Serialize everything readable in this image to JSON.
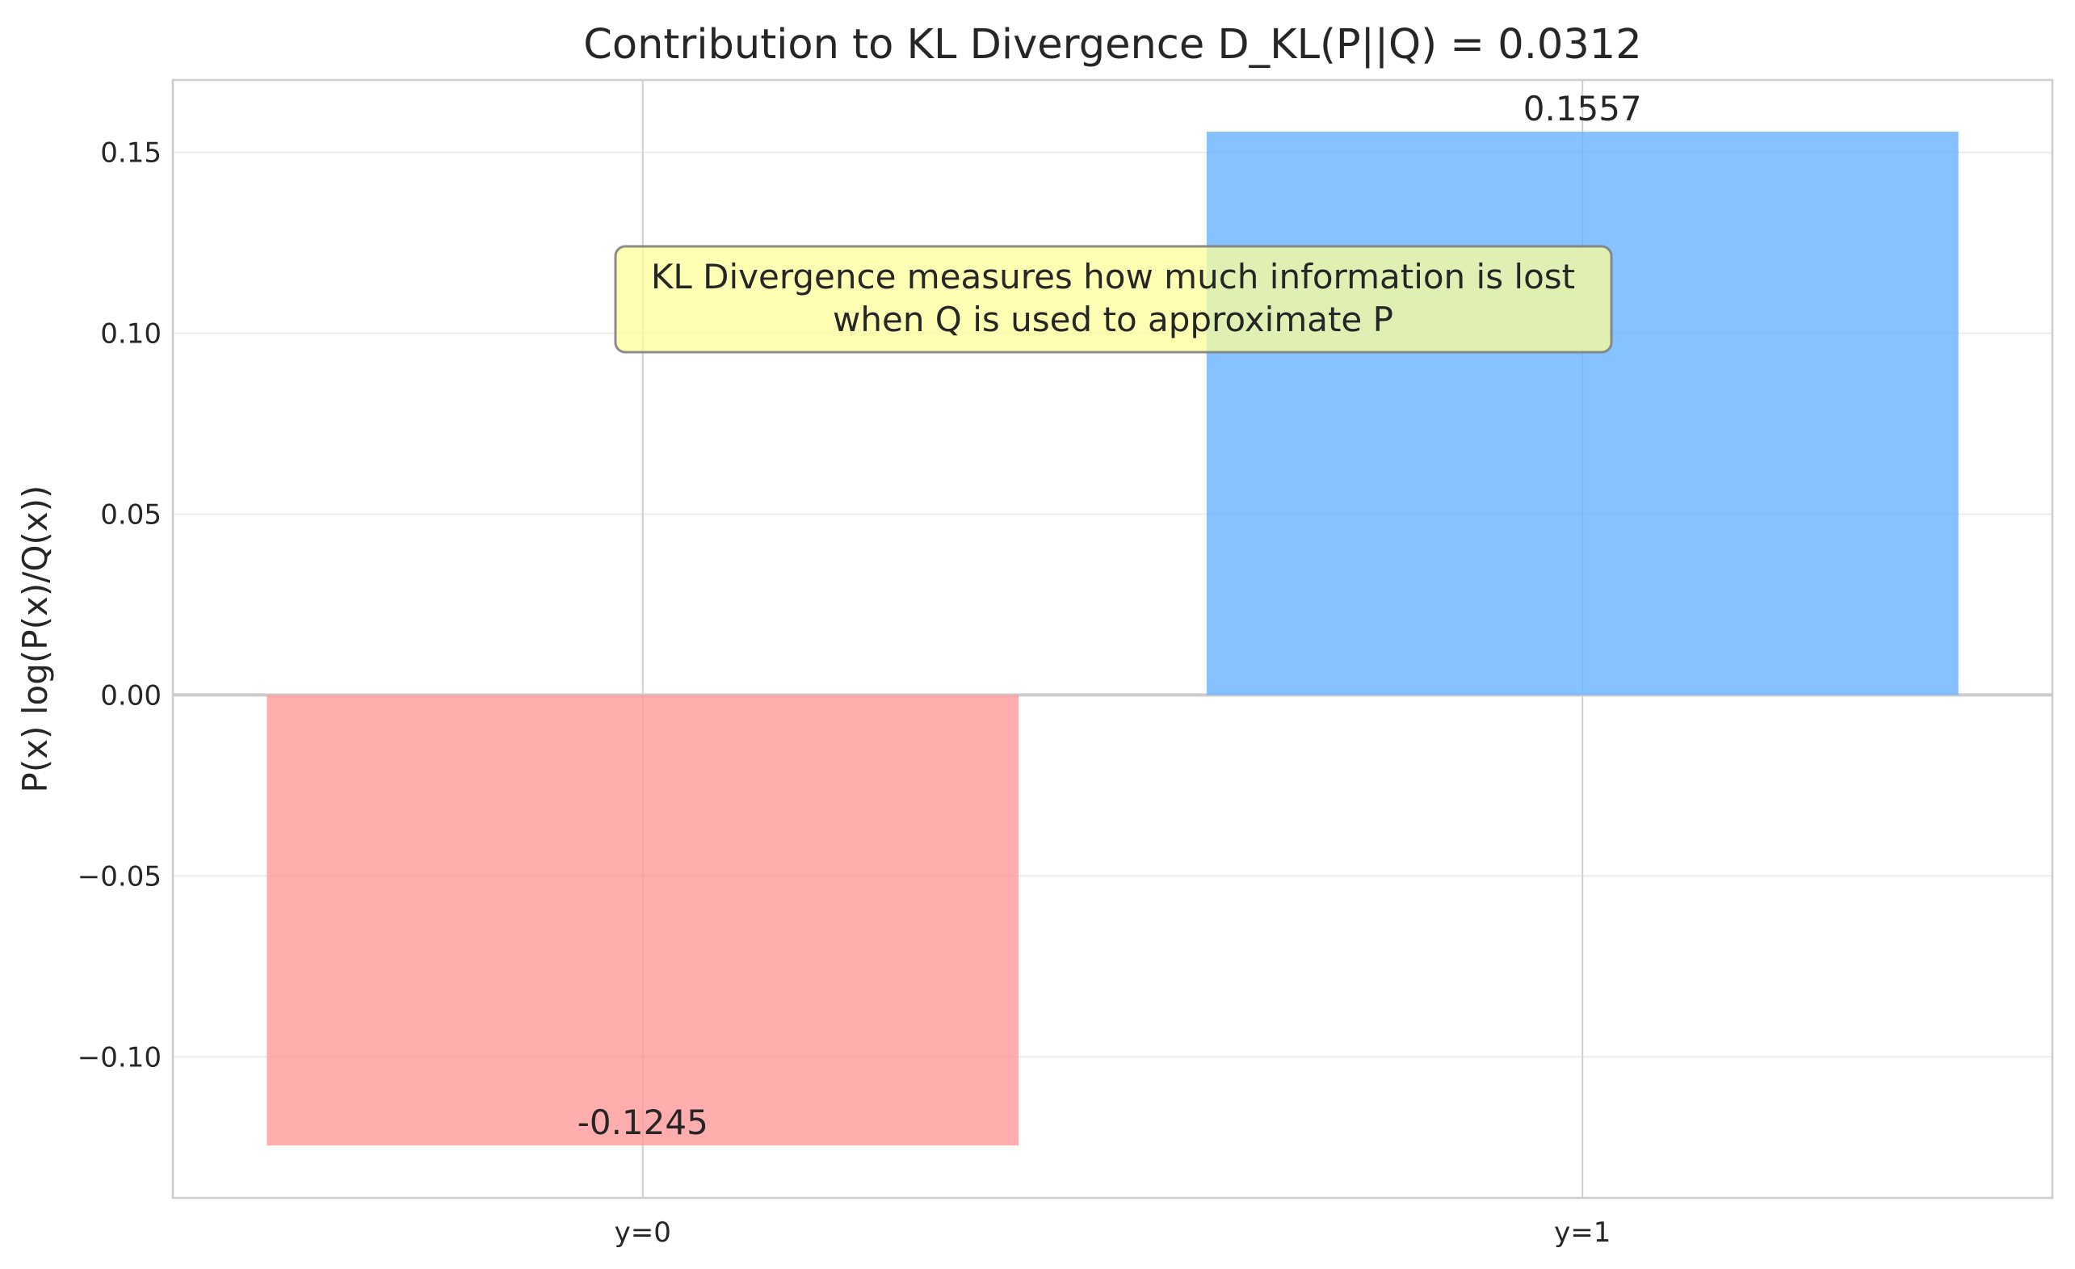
{
  "chart_data": {
    "type": "bar",
    "title": "Contribution to KL Divergence D_KL(P||Q) = 0.0312",
    "xlabel": "",
    "ylabel": "P(x) log(P(x)/Q(x))",
    "categories": [
      "y=0",
      "y=1"
    ],
    "values": [
      -0.1245,
      0.1557
    ],
    "value_labels": [
      "-0.1245",
      "0.1557"
    ],
    "bar_colors": [
      "#ff9999",
      "#66b3ff"
    ],
    "ylim": [
      -0.139,
      0.17
    ],
    "yticks": [
      -0.1,
      -0.05,
      0.0,
      0.05,
      0.1,
      0.15
    ],
    "ytick_labels": [
      "−0.10",
      "−0.05",
      "0.00",
      "0.05",
      "0.10",
      "0.15"
    ],
    "grid": true,
    "annotation": {
      "lines": [
        "KL Divergence measures how much information is lost",
        "when Q is used to approximate P"
      ],
      "background": "#ffff99"
    }
  }
}
